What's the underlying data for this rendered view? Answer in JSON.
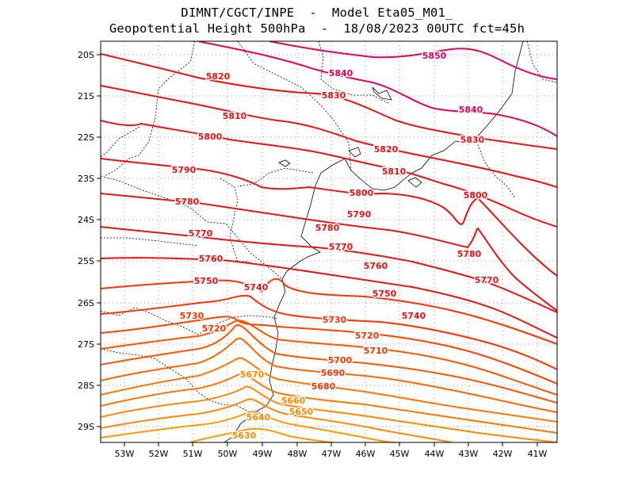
{
  "title": {
    "line1": "DIMNT/CGCT/INPE  -  Model Eta05_M01_",
    "line2": "Geopotential Height 500hPa  -  18/08/2023 00UTC fct=45h"
  },
  "axes": {
    "x_labels": [
      "53W",
      "52W",
      "51W",
      "50W",
      "49W",
      "48W",
      "47W",
      "46W",
      "45W",
      "44W",
      "43W",
      "42W",
      "41W"
    ],
    "y_labels": [
      "20S",
      "21S",
      "22S",
      "23S",
      "24S",
      "25S",
      "26S",
      "27S",
      "28S",
      "29S"
    ]
  },
  "colors": {
    "red": "#ee1111",
    "magenta": "#e8005a",
    "orange": "#ff7700",
    "coast": "#000000",
    "grid": "#999999"
  },
  "contour_labels": [
    {
      "text": "5850",
      "color": "magenta"
    },
    {
      "text": "5840",
      "color": "magenta"
    },
    {
      "text": "5840",
      "color": "magenta"
    },
    {
      "text": "5830",
      "color": "red"
    },
    {
      "text": "5830",
      "color": "red"
    },
    {
      "text": "5820",
      "color": "red"
    },
    {
      "text": "5820",
      "color": "red"
    },
    {
      "text": "5810",
      "color": "red"
    },
    {
      "text": "5810",
      "color": "red"
    },
    {
      "text": "5800",
      "color": "red"
    },
    {
      "text": "5800",
      "color": "red"
    },
    {
      "text": "5800",
      "color": "red"
    },
    {
      "text": "5790",
      "color": "red"
    },
    {
      "text": "5790",
      "color": "red"
    },
    {
      "text": "5780",
      "color": "red"
    },
    {
      "text": "5780",
      "color": "red"
    },
    {
      "text": "5780",
      "color": "red"
    },
    {
      "text": "5770",
      "color": "red"
    },
    {
      "text": "5770",
      "color": "red"
    },
    {
      "text": "5770",
      "color": "red"
    },
    {
      "text": "5760",
      "color": "red"
    },
    {
      "text": "5760",
      "color": "red"
    },
    {
      "text": "5750",
      "color": "red"
    },
    {
      "text": "5750",
      "color": "red"
    },
    {
      "text": "5740",
      "color": "red"
    },
    {
      "text": "5740",
      "color": "red"
    },
    {
      "text": "5730",
      "color": "orangered"
    },
    {
      "text": "5730",
      "color": "orangered"
    },
    {
      "text": "5720",
      "color": "orangered"
    },
    {
      "text": "5720",
      "color": "orangered"
    },
    {
      "text": "5710",
      "color": "orangered"
    },
    {
      "text": "5700",
      "color": "orangered"
    },
    {
      "text": "5690",
      "color": "orangered"
    },
    {
      "text": "5680",
      "color": "orangered"
    },
    {
      "text": "5670",
      "color": "orange"
    },
    {
      "text": "5660",
      "color": "orange"
    },
    {
      "text": "5650",
      "color": "orange"
    },
    {
      "text": "5640",
      "color": "orange"
    },
    {
      "text": "5630",
      "color": "orange"
    }
  ]
}
